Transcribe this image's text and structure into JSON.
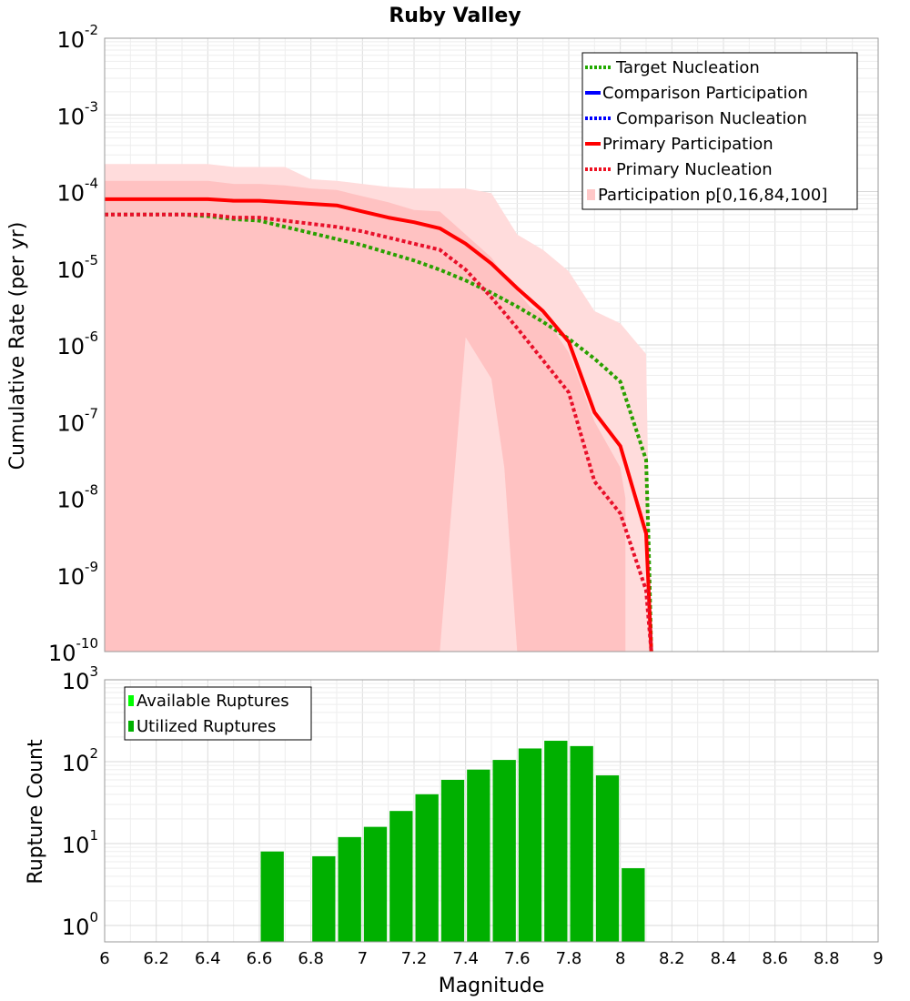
{
  "chart_data": [
    {
      "type": "line",
      "title": "Ruby Valley",
      "xlabel": "Magnitude",
      "ylabel": "Cumulative Rate (per yr)",
      "yscale": "log",
      "xlim": [
        6,
        9
      ],
      "ylim_exp": [
        -10,
        -2
      ],
      "ytick_labels": [
        "10",
        "10",
        "10",
        "10",
        "10",
        "10",
        "10",
        "10",
        "10"
      ],
      "ytick_exps": [
        "-10",
        "-9",
        "-8",
        "-7",
        "-6",
        "-5",
        "-4",
        "-3",
        "-2"
      ],
      "legend_position": "top-right",
      "legend": [
        {
          "label": "Target Nucleation",
          "color": "#22aa00",
          "style": "dotted"
        },
        {
          "label": "Comparison Participation",
          "color": "#0000ff",
          "style": "solid"
        },
        {
          "label": "Comparison Nucleation",
          "color": "#0000ff",
          "style": "dotted"
        },
        {
          "label": "Primary Participation",
          "color": "#ff0000",
          "style": "solid"
        },
        {
          "label": "Primary Nucleation",
          "color": "#ee1122",
          "style": "dotted"
        },
        {
          "label": "Participation p[0,16,84,100]",
          "color": "#ffc8c8",
          "style": "band"
        }
      ],
      "series": [
        {
          "name": "Target Nucleation",
          "x": [
            6.0,
            6.1,
            6.2,
            6.3,
            6.4,
            6.5,
            6.6,
            6.7,
            6.8,
            6.9,
            7.0,
            7.1,
            7.2,
            7.3,
            7.4,
            7.5,
            7.6,
            7.7,
            7.8,
            7.9,
            8.0,
            8.1,
            8.11,
            8.12
          ],
          "log10y": [
            -4.3,
            -4.3,
            -4.3,
            -4.3,
            -4.32,
            -4.36,
            -4.38,
            -4.46,
            -4.54,
            -4.62,
            -4.7,
            -4.8,
            -4.9,
            -5.02,
            -5.16,
            -5.32,
            -5.5,
            -5.7,
            -5.92,
            -6.18,
            -6.48,
            -7.5,
            -8.6,
            -10
          ]
        },
        {
          "name": "Primary Participation",
          "x": [
            6.0,
            6.1,
            6.2,
            6.3,
            6.4,
            6.5,
            6.6,
            6.7,
            6.8,
            6.9,
            7.0,
            7.1,
            7.2,
            7.3,
            7.4,
            7.5,
            7.6,
            7.7,
            7.8,
            7.9,
            8.0,
            8.1,
            8.11,
            8.12
          ],
          "log10y": [
            -4.1,
            -4.1,
            -4.1,
            -4.1,
            -4.1,
            -4.12,
            -4.12,
            -4.14,
            -4.16,
            -4.18,
            -4.26,
            -4.34,
            -4.4,
            -4.48,
            -4.68,
            -4.94,
            -5.26,
            -5.56,
            -5.96,
            -6.88,
            -7.32,
            -8.46,
            -9.2,
            -10
          ]
        },
        {
          "name": "Primary Nucleation",
          "x": [
            6.0,
            6.1,
            6.2,
            6.3,
            6.4,
            6.5,
            6.6,
            6.7,
            6.8,
            6.9,
            7.0,
            7.1,
            7.2,
            7.3,
            7.4,
            7.5,
            7.6,
            7.7,
            7.8,
            7.9,
            8.0,
            8.1,
            8.11,
            8.12
          ],
          "log10y": [
            -4.3,
            -4.3,
            -4.3,
            -4.3,
            -4.3,
            -4.34,
            -4.34,
            -4.38,
            -4.42,
            -4.46,
            -4.52,
            -4.6,
            -4.68,
            -4.76,
            -5.02,
            -5.38,
            -5.78,
            -6.2,
            -6.62,
            -7.78,
            -8.2,
            -9.2,
            -9.6,
            -10
          ]
        }
      ],
      "band_outer": {
        "x": [
          6.0,
          6.1,
          6.2,
          6.3,
          6.4,
          6.5,
          6.6,
          6.7,
          6.8,
          6.9,
          7.0,
          7.1,
          7.2,
          7.3,
          7.4,
          7.5,
          7.6,
          7.7,
          7.8,
          7.9,
          8.0,
          8.1,
          8.12
        ],
        "upper": [
          -3.64,
          -3.64,
          -3.64,
          -3.64,
          -3.64,
          -3.68,
          -3.68,
          -3.68,
          -3.84,
          -3.86,
          -3.9,
          -3.94,
          -3.96,
          -3.96,
          -3.96,
          -4.02,
          -4.56,
          -4.76,
          -5.04,
          -5.56,
          -5.72,
          -6.12,
          -10
        ],
        "lower": [
          -10,
          -10,
          -10,
          -10,
          -10,
          -10,
          -10,
          -10,
          -10,
          -10,
          -10,
          -10,
          -10,
          -10,
          -10,
          -10,
          -10,
          -10,
          -10,
          -10,
          -10,
          -10,
          -10
        ]
      },
      "band_inner": {
        "x": [
          6.0,
          6.1,
          6.2,
          6.3,
          6.4,
          6.5,
          6.6,
          6.7,
          6.8,
          6.9,
          7.0,
          7.1,
          7.2,
          7.3,
          7.4,
          7.5,
          7.55,
          7.6,
          7.65,
          7.7,
          7.8,
          7.9,
          8.0,
          8.02
        ],
        "upper": [
          -3.86,
          -3.86,
          -3.86,
          -3.86,
          -3.86,
          -3.9,
          -3.9,
          -3.92,
          -3.96,
          -3.98,
          -4.06,
          -4.14,
          -4.24,
          -4.26,
          -4.56,
          -4.86,
          -5.1,
          -5.3,
          -5.5,
          -5.6,
          -6.1,
          -7.0,
          -7.6,
          -8.0
        ],
        "lower": [
          -10,
          -10,
          -10,
          -10,
          -10,
          -10,
          -10,
          -10,
          -10,
          -10,
          -10,
          -10,
          -10,
          -10,
          -5.9,
          -6.44,
          -7.6,
          -10,
          -10,
          -10,
          -10,
          -10,
          -10,
          -10
        ]
      }
    },
    {
      "type": "bar",
      "xlabel": "Magnitude",
      "ylabel": "Rupture Count",
      "yscale": "log",
      "xlim": [
        6,
        9
      ],
      "ylim_exp": [
        -0.2,
        3
      ],
      "xtick_labels": [
        "6",
        "6.2",
        "6.4",
        "6.6",
        "6.8",
        "7",
        "7.2",
        "7.4",
        "7.6",
        "7.8",
        "8",
        "8.2",
        "8.4",
        "8.6",
        "8.8",
        "9"
      ],
      "ytick_labels": [
        "10",
        "10",
        "10",
        "10"
      ],
      "ytick_exps": [
        "0",
        "1",
        "2",
        "3"
      ],
      "legend_position": "top-left",
      "legend": [
        {
          "label": "Available Ruptures",
          "color": "#00ff00"
        },
        {
          "label": "Utilized Ruptures",
          "color": "#00b000"
        }
      ],
      "bar_color": "#00b000",
      "bars": [
        {
          "x": 6.65,
          "value": 8
        },
        {
          "x": 6.85,
          "value": 7
        },
        {
          "x": 6.95,
          "value": 12
        },
        {
          "x": 7.05,
          "value": 16
        },
        {
          "x": 7.15,
          "value": 25
        },
        {
          "x": 7.25,
          "value": 40
        },
        {
          "x": 7.35,
          "value": 60
        },
        {
          "x": 7.45,
          "value": 80
        },
        {
          "x": 7.55,
          "value": 105
        },
        {
          "x": 7.65,
          "value": 145
        },
        {
          "x": 7.75,
          "value": 180
        },
        {
          "x": 7.85,
          "value": 155
        },
        {
          "x": 7.95,
          "value": 68
        },
        {
          "x": 8.05,
          "value": 5
        }
      ]
    }
  ]
}
